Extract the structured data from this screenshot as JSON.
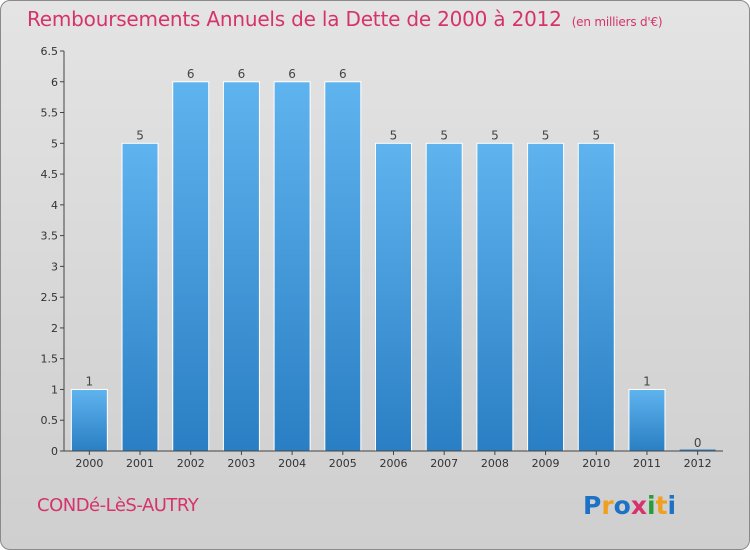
{
  "header": {
    "title": "Remboursements Annuels de la Dette de 2000 à 2012",
    "unit": "(en milliers d'€)"
  },
  "footer": {
    "town": "CONDé-LèS-AUTRY",
    "logo": "Proxiti"
  },
  "chart_data": {
    "type": "bar",
    "categories": [
      "2000",
      "2001",
      "2002",
      "2003",
      "2004",
      "2005",
      "2006",
      "2007",
      "2008",
      "2009",
      "2010",
      "2011",
      "2012"
    ],
    "values": [
      1,
      5,
      6,
      6,
      6,
      6,
      5,
      5,
      5,
      5,
      5,
      1,
      0
    ],
    "data_labels": [
      "1",
      "5",
      "6",
      "6",
      "6",
      "6",
      "5",
      "5",
      "5",
      "5",
      "5",
      "1",
      "0"
    ],
    "yticks": [
      "0",
      "0.5",
      "1",
      "1.5",
      "2",
      "2.5",
      "3",
      "3.5",
      "4",
      "4.5",
      "5",
      "5.5",
      "6",
      "6.5"
    ],
    "ylim": [
      0,
      6.5
    ],
    "grid": false,
    "bar_color": "#3b93d8"
  }
}
